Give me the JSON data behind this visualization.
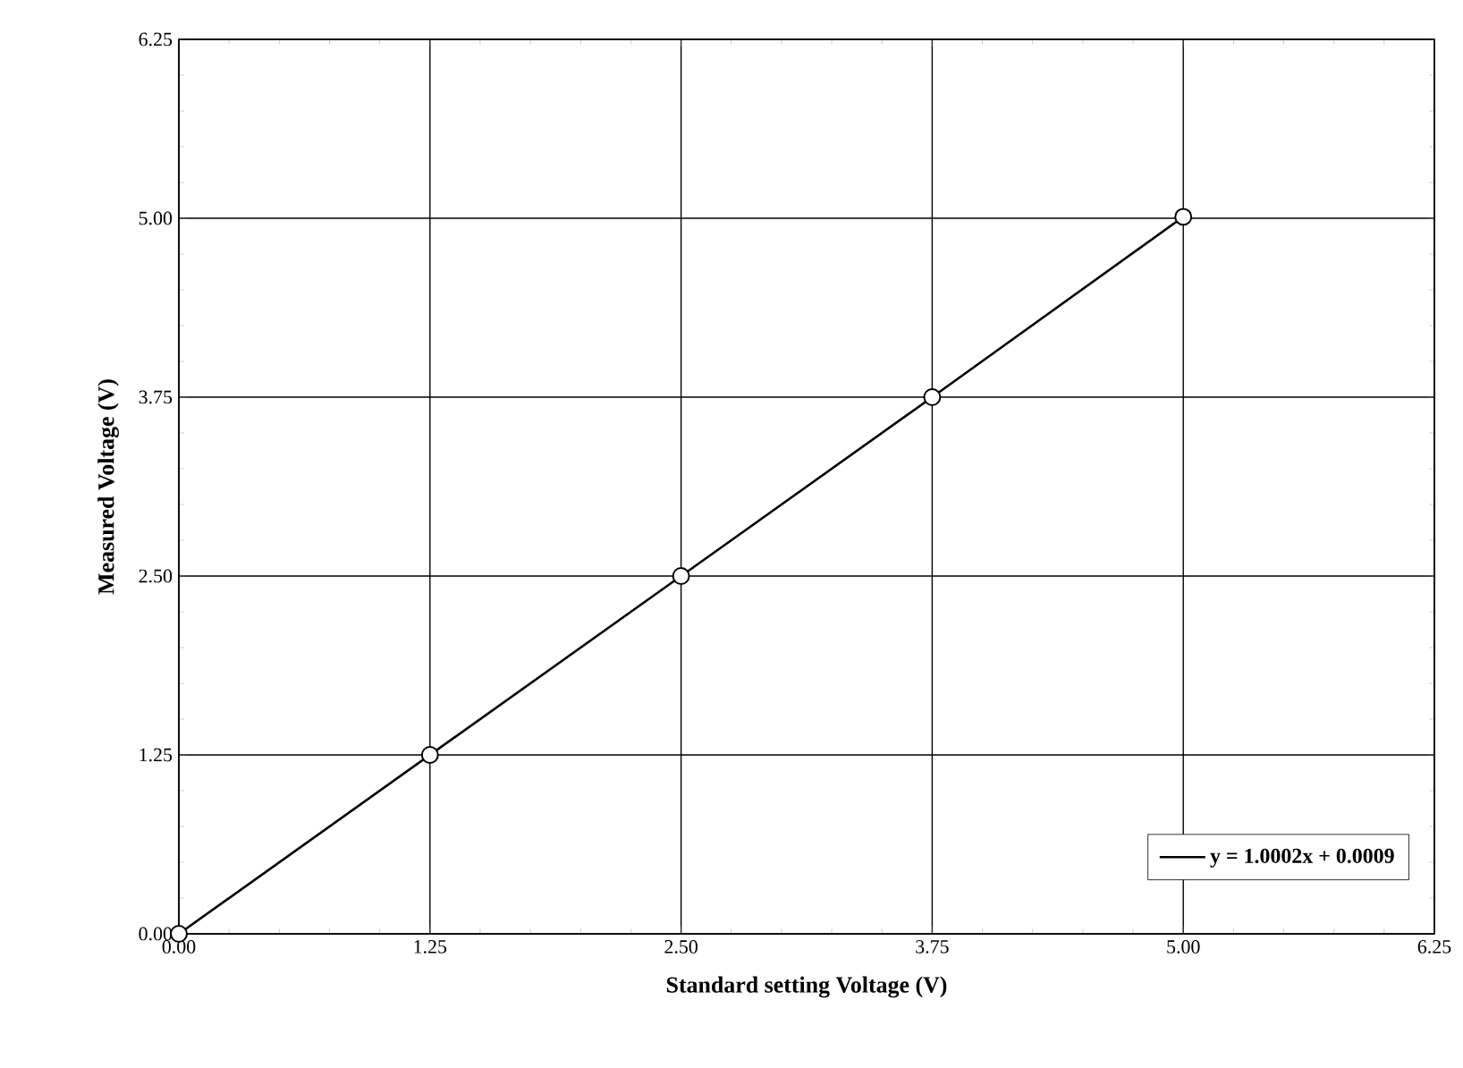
{
  "chart_data": {
    "type": "line",
    "xlabel": "Standard setting Voltage (V)",
    "ylabel": "Measured Voltage (V)",
    "x": [
      0,
      1.25,
      2.5,
      3.75,
      5
    ],
    "series": [
      {
        "name": "y = 1.0002x + 0.0009",
        "color": "#000000",
        "values": [
          0,
          1.25,
          2.5,
          3.75,
          5.01
        ]
      }
    ],
    "xlim": [
      0,
      6.25
    ],
    "ylim": [
      0,
      6.25
    ],
    "xticks": [
      {
        "value": 0,
        "label": "0.00"
      },
      {
        "value": 1.25,
        "label": "1.25"
      },
      {
        "value": 2.5,
        "label": "2.50"
      },
      {
        "value": 3.75,
        "label": "3.75"
      },
      {
        "value": 5,
        "label": "5.00"
      },
      {
        "value": 6.25,
        "label": "6.25"
      }
    ],
    "yticks": [
      {
        "value": 0,
        "label": "0.00"
      },
      {
        "value": 1.25,
        "label": "1.25"
      },
      {
        "value": 2.5,
        "label": "2.50"
      },
      {
        "value": 3.75,
        "label": "3.75"
      },
      {
        "value": 5,
        "label": "5.00"
      },
      {
        "value": 6.25,
        "label": "6.25"
      }
    ],
    "grid": true,
    "legend": "bottom right",
    "marker": "circle",
    "line_style": "solid"
  }
}
